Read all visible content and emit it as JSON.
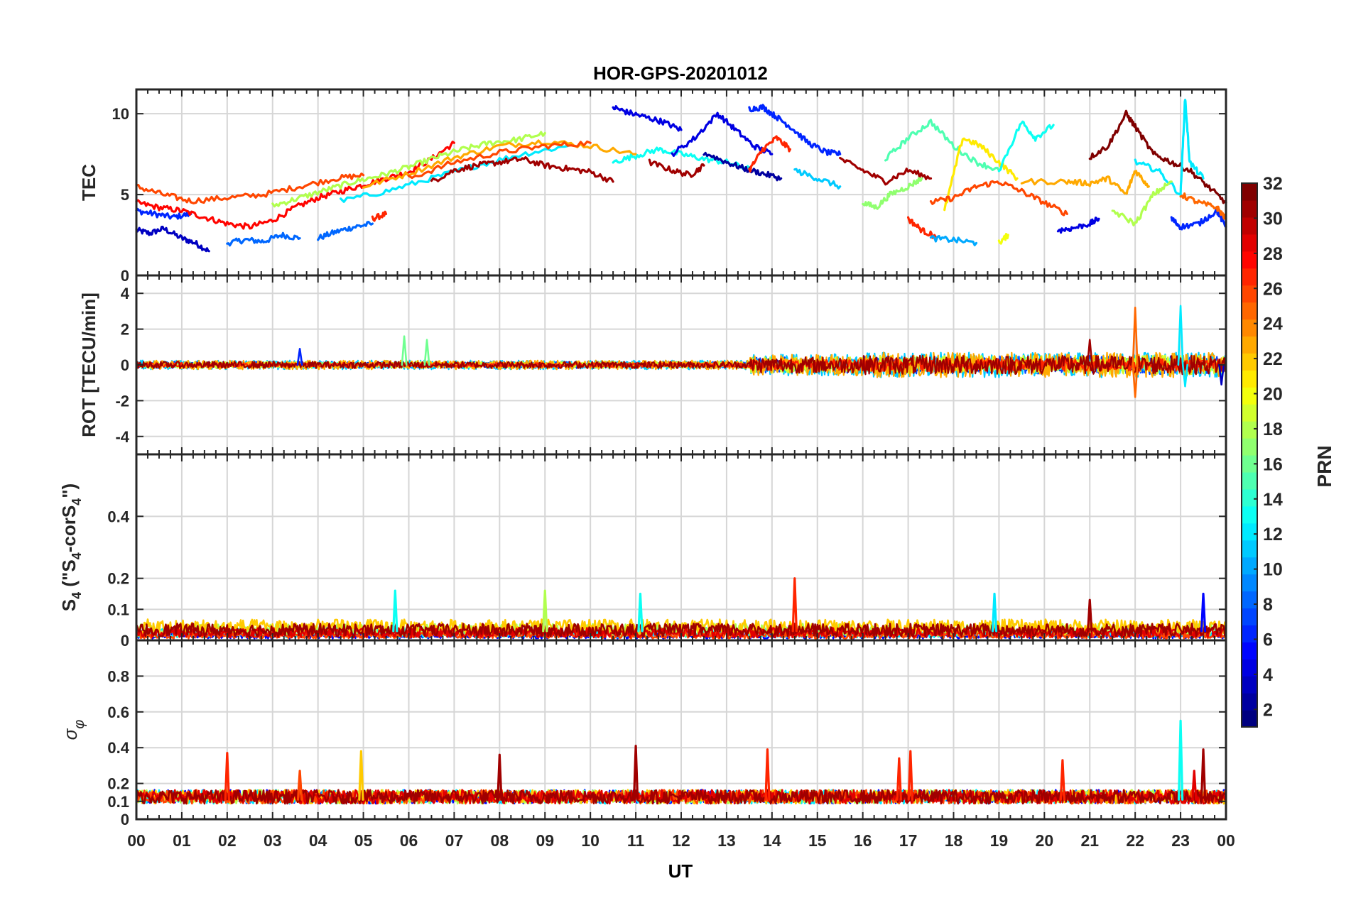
{
  "chart_data": {
    "type": "line",
    "title": "HOR-GPS-20201012",
    "xlabel": "UT",
    "x_ticks": [
      "00",
      "01",
      "02",
      "03",
      "04",
      "05",
      "06",
      "07",
      "08",
      "09",
      "10",
      "11",
      "12",
      "13",
      "14",
      "15",
      "16",
      "17",
      "18",
      "19",
      "20",
      "21",
      "22",
      "23",
      "00"
    ],
    "x_range_hours": [
      0,
      24
    ],
    "grid": true,
    "panels": [
      {
        "ylabel": "TEC",
        "ylim": [
          0,
          11.5
        ],
        "yticks": [
          0,
          5,
          10
        ],
        "series": [
          {
            "prn": 3,
            "x": [
              0.0,
              0.3,
              0.6,
              1.0,
              1.3,
              1.6
            ],
            "y": [
              2.8,
              2.6,
              2.9,
              2.3,
              2.0,
              1.5
            ]
          },
          {
            "prn": 6,
            "x": [
              0.0,
              0.4,
              0.8,
              1.2
            ],
            "y": [
              4.0,
              3.8,
              3.6,
              3.8
            ]
          },
          {
            "prn": 8,
            "x": [
              2.0,
              2.4,
              2.8,
              3.2,
              3.6
            ],
            "y": [
              2.0,
              2.2,
              2.1,
              2.5,
              2.3
            ]
          },
          {
            "prn": 8,
            "x": [
              4.0,
              4.4,
              4.8,
              5.2
            ],
            "y": [
              2.3,
              2.7,
              3.0,
              3.2
            ]
          },
          {
            "prn": 27,
            "x": [
              5.2,
              5.5
            ],
            "y": [
              3.5,
              3.8
            ]
          },
          {
            "prn": 28,
            "x": [
              0.0,
              0.5,
              1.0,
              1.5,
              2.0,
              2.5,
              3.0,
              3.5,
              4.0,
              4.5,
              5.0,
              5.5,
              6.0,
              6.5,
              7.0
            ],
            "y": [
              4.5,
              4.2,
              4.0,
              3.6,
              3.2,
              3.0,
              3.4,
              4.2,
              4.8,
              5.2,
              5.6,
              6.0,
              6.4,
              7.2,
              8.2
            ]
          },
          {
            "prn": 26,
            "x": [
              0.0,
              0.6,
              1.2,
              2.0,
              2.8,
              3.6,
              4.4,
              5.0
            ],
            "y": [
              5.5,
              5.0,
              4.6,
              4.8,
              5.0,
              5.5,
              6.0,
              6.2
            ]
          },
          {
            "prn": 18,
            "x": [
              3.0,
              3.6,
              4.2,
              4.8,
              5.4,
              6.0,
              6.6,
              7.2,
              7.8,
              8.4,
              9.0
            ],
            "y": [
              4.3,
              4.8,
              5.3,
              5.8,
              6.2,
              6.7,
              7.3,
              7.8,
              8.2,
              8.4,
              8.8
            ]
          },
          {
            "prn": 12,
            "x": [
              4.5,
              5.5,
              6.5,
              7.5,
              8.5,
              9.5
            ],
            "y": [
              4.6,
              5.2,
              6.0,
              6.8,
              7.5,
              8.0
            ]
          },
          {
            "prn": 23,
            "x": [
              5.0,
              6.0,
              7.0,
              8.0,
              9.0,
              10.0,
              11.0
            ],
            "y": [
              5.5,
              6.3,
              7.3,
              8.0,
              8.3,
              8.0,
              7.5
            ]
          },
          {
            "prn": 26,
            "x": [
              6.0,
              7.0,
              8.0,
              9.0,
              10.0
            ],
            "y": [
              6.0,
              7.0,
              7.6,
              8.0,
              8.2
            ]
          },
          {
            "prn": 31,
            "x": [
              6.5,
              7.0,
              7.5,
              8.0,
              8.5,
              9.0,
              9.5,
              10.0,
              10.5
            ],
            "y": [
              5.8,
              6.5,
              6.8,
              7.0,
              7.2,
              6.8,
              6.6,
              6.4,
              5.8
            ]
          },
          {
            "prn": 4,
            "x": [
              10.5,
              10.8,
              11.2,
              11.6,
              12.0
            ],
            "y": [
              10.4,
              10.1,
              9.8,
              9.5,
              9.0
            ]
          },
          {
            "prn": 13,
            "x": [
              10.5,
              11.0,
              11.5,
              12.0,
              12.5,
              13.0,
              13.5
            ],
            "y": [
              7.0,
              7.4,
              7.8,
              7.5,
              7.2,
              7.0,
              6.6
            ]
          },
          {
            "prn": 31,
            "x": [
              11.3,
              11.8,
              12.2,
              12.5
            ],
            "y": [
              7.0,
              6.5,
              6.2,
              6.8
            ]
          },
          {
            "prn": 4,
            "x": [
              11.8,
              12.3,
              12.8,
              13.2,
              13.6,
              14.0
            ],
            "y": [
              7.5,
              8.5,
              10.0,
              9.0,
              8.0,
              7.5
            ]
          },
          {
            "prn": 6,
            "x": [
              13.5,
              13.8,
              14.1,
              14.4,
              14.8,
              15.2,
              15.5
            ],
            "y": [
              10.3,
              10.4,
              9.8,
              9.2,
              8.2,
              7.6,
              7.5
            ]
          },
          {
            "prn": 2,
            "x": [
              12.5,
              13.0,
              13.4,
              13.8,
              14.2
            ],
            "y": [
              7.6,
              7.0,
              6.6,
              6.3,
              6.0
            ]
          },
          {
            "prn": 27,
            "x": [
              13.5,
              13.8,
              14.1,
              14.4
            ],
            "y": [
              6.5,
              7.8,
              8.5,
              7.8
            ]
          },
          {
            "prn": 11,
            "x": [
              14.5,
              15.0,
              15.5
            ],
            "y": [
              6.5,
              6.0,
              5.5
            ]
          },
          {
            "prn": 31,
            "x": [
              15.5,
              16.0,
              16.5,
              17.0,
              17.5
            ],
            "y": [
              7.2,
              6.5,
              5.8,
              6.5,
              6.0
            ]
          },
          {
            "prn": 17,
            "x": [
              16.0,
              16.3,
              16.6,
              17.0,
              17.3
            ],
            "y": [
              4.5,
              4.2,
              5.0,
              5.5,
              6.0
            ]
          },
          {
            "prn": 27,
            "x": [
              17.0,
              17.3,
              17.6
            ],
            "y": [
              3.5,
              2.8,
              2.4
            ]
          },
          {
            "prn": 10,
            "x": [
              17.5,
              18.0,
              18.5
            ],
            "y": [
              2.3,
              2.2,
              2.0
            ]
          },
          {
            "prn": 15,
            "x": [
              16.5,
              17.0,
              17.5,
              18.0,
              18.5,
              19.0
            ],
            "y": [
              7.2,
              8.5,
              9.5,
              8.0,
              7.0,
              6.5
            ]
          },
          {
            "prn": 21,
            "x": [
              17.8,
              18.2,
              18.6,
              19.0,
              19.4
            ],
            "y": [
              4.0,
              8.5,
              8.0,
              7.0,
              6.0
            ]
          },
          {
            "prn": 20,
            "x": [
              19.0,
              19.2
            ],
            "y": [
              2.0,
              2.5
            ]
          },
          {
            "prn": 13,
            "x": [
              19.0,
              19.5,
              19.8,
              20.2
            ],
            "y": [
              6.5,
              9.5,
              8.5,
              9.3
            ]
          },
          {
            "prn": 26,
            "x": [
              17.5,
              18.0,
              18.5,
              19.0,
              19.5,
              20.0,
              20.5
            ],
            "y": [
              4.5,
              4.8,
              5.5,
              5.8,
              5.2,
              4.5,
              3.8
            ]
          },
          {
            "prn": 4,
            "x": [
              20.3,
              20.6,
              21.0,
              21.2
            ],
            "y": [
              2.8,
              2.9,
              3.2,
              3.5
            ]
          },
          {
            "prn": 23,
            "x": [
              19.5,
              20.5,
              21.0,
              21.4,
              21.8,
              22.0,
              22.3
            ],
            "y": [
              5.8,
              5.8,
              5.7,
              6.0,
              5.0,
              6.5,
              5.5
            ]
          },
          {
            "prn": 32,
            "x": [
              21.0,
              21.4,
              21.8,
              22.0,
              22.4,
              22.8,
              23.2,
              23.6,
              24.0
            ],
            "y": [
              7.3,
              8.0,
              10.0,
              9.2,
              7.5,
              7.0,
              6.5,
              5.5,
              4.5
            ]
          },
          {
            "prn": 12,
            "x": [
              22.0,
              22.5,
              23.0,
              23.1,
              23.2,
              23.5
            ],
            "y": [
              7.0,
              6.5,
              5.0,
              11.0,
              7.0,
              6.0
            ]
          },
          {
            "prn": 18,
            "x": [
              21.5,
              22.0,
              22.4,
              22.8
            ],
            "y": [
              4.0,
              3.2,
              5.0,
              5.8
            ]
          },
          {
            "prn": 6,
            "x": [
              22.8,
              23.0,
              23.4,
              23.8,
              24.0
            ],
            "y": [
              3.5,
              3.0,
              3.2,
              4.0,
              3.0
            ]
          },
          {
            "prn": 25,
            "x": [
              23.0,
              23.4,
              23.8,
              24.0
            ],
            "y": [
              5.0,
              4.5,
              4.2,
              3.5
            ]
          }
        ]
      },
      {
        "ylabel": "ROT [TECU/min]",
        "ylim": [
          -5,
          5
        ],
        "yticks": [
          -4,
          -2,
          0,
          2,
          4
        ],
        "spikes": [
          {
            "prn": 16,
            "x": 5.9,
            "y": 1.6
          },
          {
            "prn": 16,
            "x": 6.4,
            "y": 1.4
          },
          {
            "prn": 6,
            "x": 3.6,
            "y": 0.9
          },
          {
            "prn": 31,
            "x": 21.0,
            "y": 1.4
          },
          {
            "prn": 25,
            "x": 22.0,
            "y": 3.2
          },
          {
            "prn": 25,
            "x": 22.0,
            "y": -1.8
          },
          {
            "prn": 12,
            "x": 23.0,
            "y": 3.3
          },
          {
            "prn": 12,
            "x": 23.1,
            "y": -1.2
          },
          {
            "prn": 3,
            "x": 23.9,
            "y": -1.1
          }
        ],
        "noise_bands": [
          {
            "x": [
              0,
              13.5
            ],
            "amplitude": 0.25
          },
          {
            "x": [
              13.5,
              16.0
            ],
            "amplitude": 0.6
          },
          {
            "x": [
              16.0,
              24.0
            ],
            "amplitude": 0.7
          }
        ]
      },
      {
        "ylabel": "S4 (\"S4-corS4\")",
        "ylabel_parts": {
          "s": "S",
          "sub": "4",
          "open": " (\"S",
          "mid": "-corS",
          "close": "\")"
        },
        "ylim": [
          0,
          0.6
        ],
        "yticks": [
          0,
          0.1,
          0.2,
          0.4
        ],
        "spikes": [
          {
            "prn": 13,
            "x": 5.7,
            "y": 0.16
          },
          {
            "prn": 27,
            "x": 14.5,
            "y": 0.2
          },
          {
            "prn": 12,
            "x": 18.9,
            "y": 0.15
          },
          {
            "prn": 18,
            "x": 9.0,
            "y": 0.16
          },
          {
            "prn": 13,
            "x": 11.1,
            "y": 0.15
          },
          {
            "prn": 5,
            "x": 23.5,
            "y": 0.15
          },
          {
            "prn": 31,
            "x": 21.0,
            "y": 0.13
          }
        ],
        "baseline": 0.03
      },
      {
        "ylabel": "σφ",
        "ylabel_parts": {
          "sigma": "σ",
          "phi": "φ"
        },
        "ylim": [
          0,
          1.0
        ],
        "yticks": [
          0,
          0.1,
          0.2,
          0.4,
          0.6,
          0.8
        ],
        "spikes": [
          {
            "prn": 27,
            "x": 2.0,
            "y": 0.37
          },
          {
            "prn": 22,
            "x": 4.95,
            "y": 0.38
          },
          {
            "prn": 31,
            "x": 8.0,
            "y": 0.36
          },
          {
            "prn": 31,
            "x": 11.0,
            "y": 0.41
          },
          {
            "prn": 27,
            "x": 13.9,
            "y": 0.39
          },
          {
            "prn": 27,
            "x": 16.8,
            "y": 0.34
          },
          {
            "prn": 27,
            "x": 17.05,
            "y": 0.38
          },
          {
            "prn": 27,
            "x": 20.4,
            "y": 0.33
          },
          {
            "prn": 13,
            "x": 23.0,
            "y": 0.55
          },
          {
            "prn": 31,
            "x": 23.5,
            "y": 0.39
          },
          {
            "prn": 29,
            "x": 23.3,
            "y": 0.27
          },
          {
            "prn": 26,
            "x": 3.6,
            "y": 0.27
          }
        ],
        "baseline": 0.11
      }
    ],
    "colorbar": {
      "label": "PRN",
      "range": [
        1,
        32
      ],
      "ticks": [
        "2",
        "4",
        "6",
        "8",
        "10",
        "12",
        "14",
        "16",
        "18",
        "20",
        "22",
        "24",
        "26",
        "28",
        "30",
        "32"
      ],
      "colormap": "jet"
    }
  }
}
